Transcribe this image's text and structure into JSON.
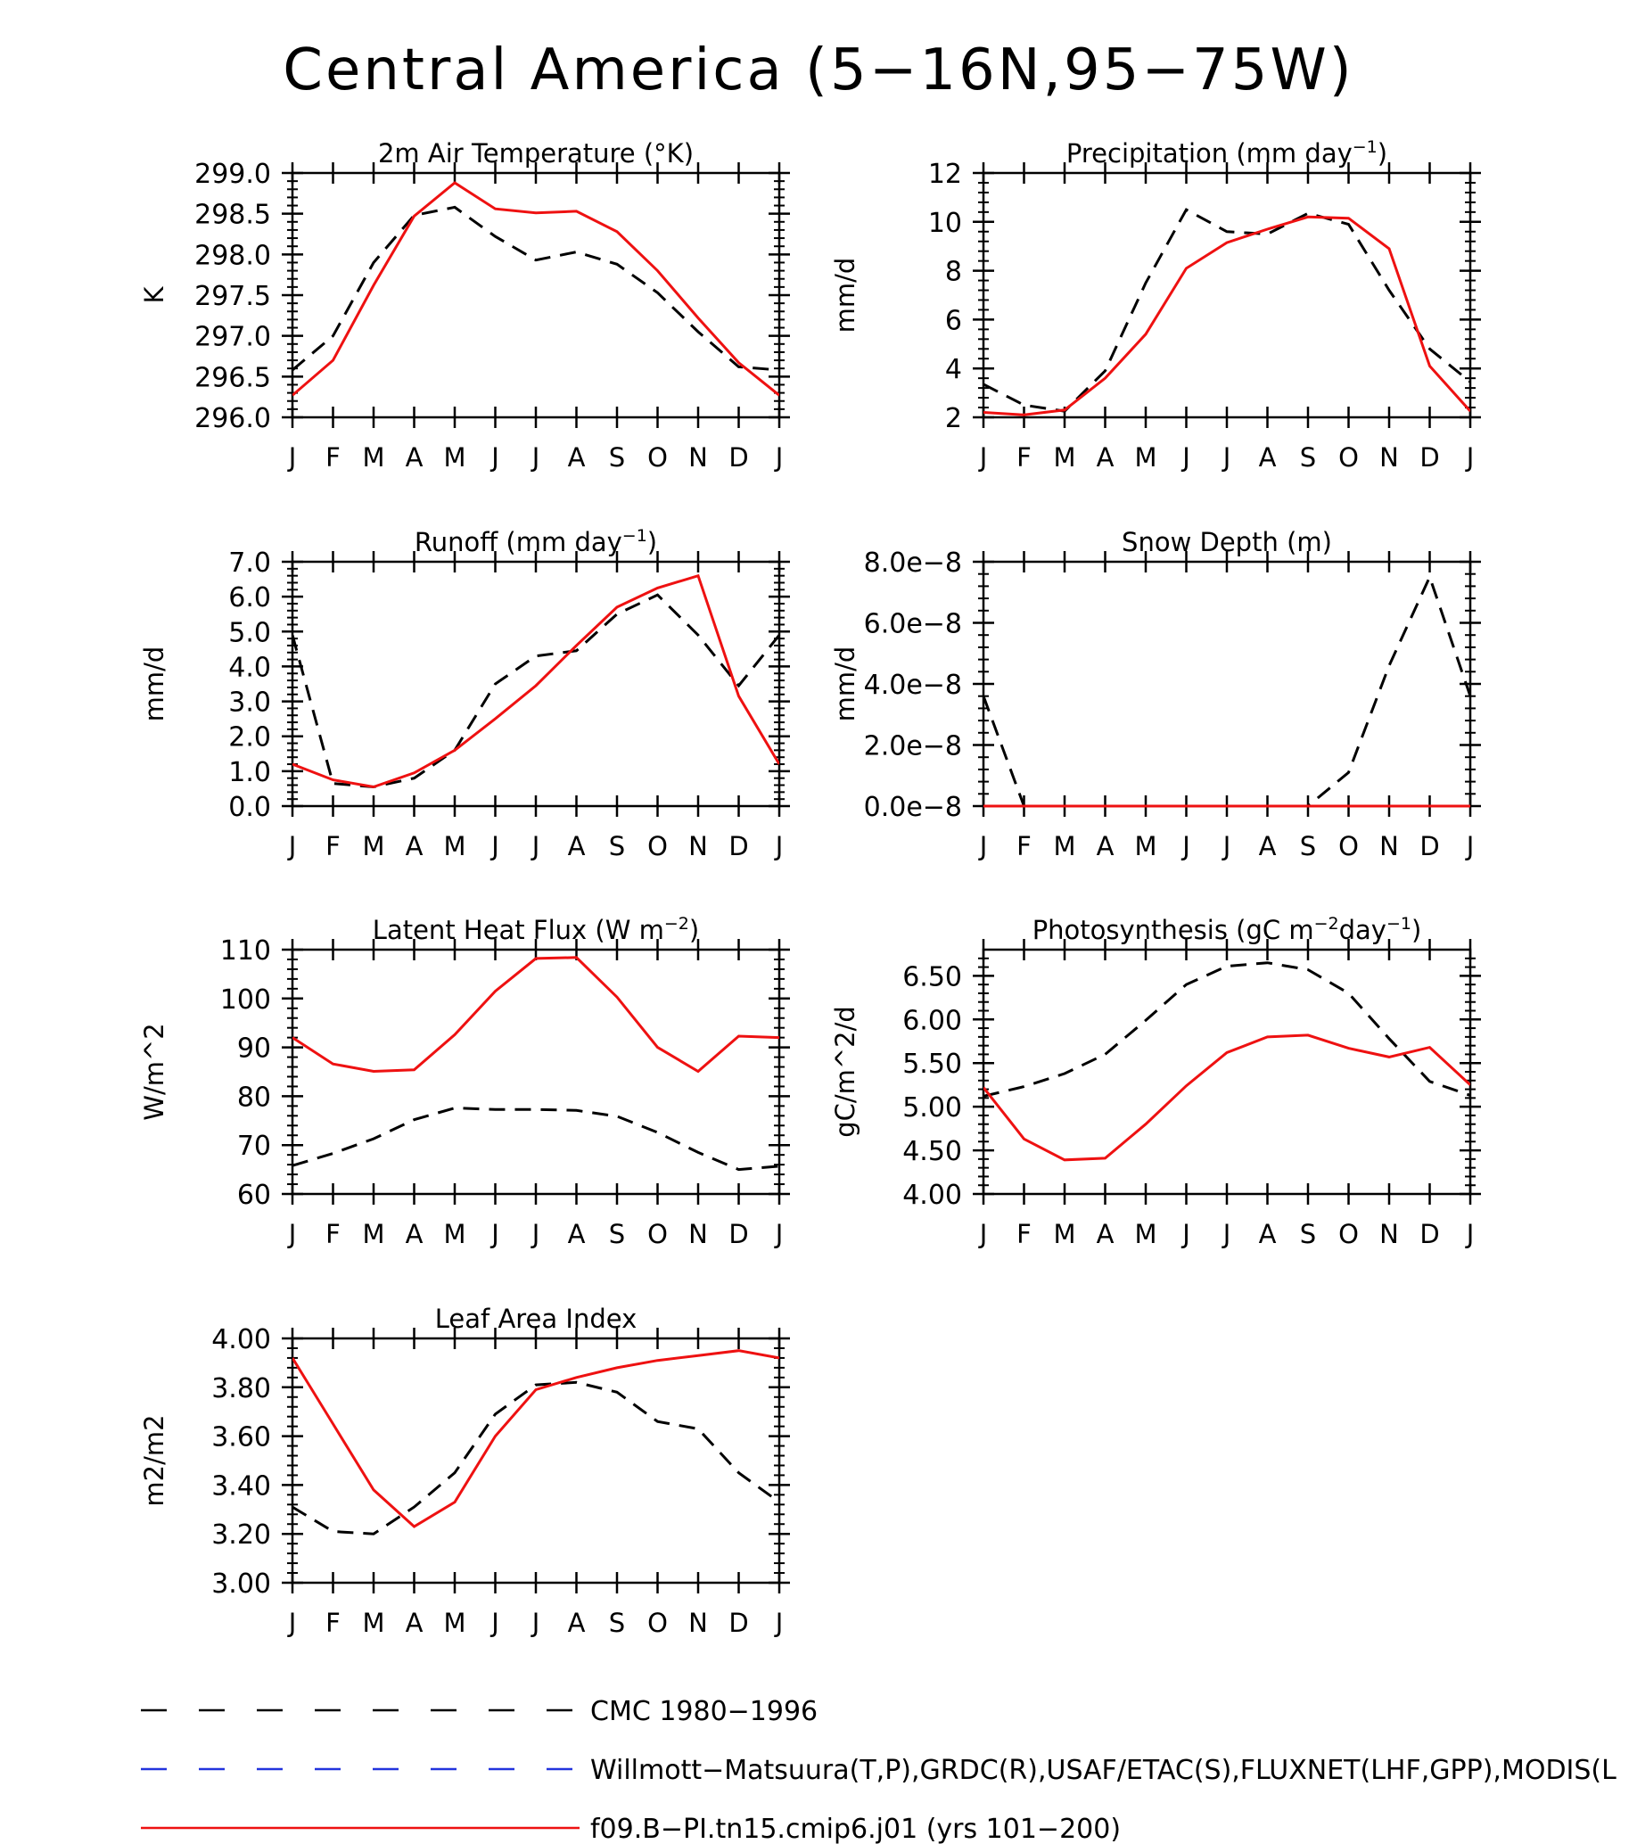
{
  "figure": {
    "title": "Central America (5−16N,95−75W)"
  },
  "months": [
    "J",
    "F",
    "M",
    "A",
    "M",
    "J",
    "J",
    "A",
    "S",
    "O",
    "N",
    "D",
    "J"
  ],
  "chart_data": [
    {
      "id": "temp",
      "type": "line",
      "title": "2m Air Temperature (°K)",
      "ylabel": "K",
      "ylim": [
        296.0,
        299.0
      ],
      "yticks": [
        296.0,
        296.5,
        297.0,
        297.5,
        298.0,
        298.5,
        299.0
      ],
      "yticklabels": [
        "296.0",
        "296.5",
        "297.0",
        "297.5",
        "298.0",
        "298.5",
        "299.0"
      ],
      "series": [
        {
          "style": "obs-cmc",
          "values": [
            296.58,
            297.0,
            297.9,
            298.48,
            298.58,
            298.22,
            297.93,
            298.03,
            297.88,
            297.53,
            297.05,
            296.62,
            296.58
          ]
        },
        {
          "style": "model",
          "values": [
            296.27,
            296.7,
            297.62,
            298.47,
            298.88,
            298.56,
            298.51,
            298.53,
            298.28,
            297.8,
            297.22,
            296.67,
            296.27
          ]
        }
      ]
    },
    {
      "id": "precip",
      "type": "line",
      "title": "Precipitation (mm day",
      "title_sup": "−1",
      "title_suffix": ")",
      "ylabel": "mm/d",
      "ylim": [
        2,
        12
      ],
      "yticks": [
        2,
        4,
        6,
        8,
        10,
        12
      ],
      "yticklabels": [
        "2",
        "4",
        "6",
        "8",
        "10",
        "12"
      ],
      "series": [
        {
          "style": "obs-cmc",
          "values": [
            3.35,
            2.5,
            2.25,
            3.9,
            7.5,
            10.5,
            9.6,
            9.5,
            10.35,
            9.9,
            7.2,
            4.8,
            3.45
          ]
        },
        {
          "style": "model",
          "values": [
            2.2,
            2.1,
            2.3,
            3.6,
            5.4,
            8.1,
            9.15,
            9.7,
            10.2,
            10.15,
            8.9,
            4.1,
            2.25
          ]
        }
      ]
    },
    {
      "id": "runoff",
      "type": "line",
      "title": "Runoff (mm day",
      "title_sup": "−1",
      "title_suffix": ")",
      "ylabel": "mm/d",
      "ylim": [
        0,
        7
      ],
      "yticks": [
        0,
        1,
        2,
        3,
        4,
        5,
        6,
        7
      ],
      "yticklabels": [
        "0.0",
        "1.0",
        "2.0",
        "3.0",
        "4.0",
        "5.0",
        "6.0",
        "7.0"
      ],
      "series": [
        {
          "style": "obs-cmc",
          "values": [
            4.9,
            0.65,
            0.55,
            0.8,
            1.6,
            3.5,
            4.3,
            4.45,
            5.5,
            6.05,
            4.9,
            3.45,
            4.9
          ]
        },
        {
          "style": "model",
          "values": [
            1.2,
            0.75,
            0.55,
            0.95,
            1.6,
            2.5,
            3.45,
            4.6,
            5.7,
            6.25,
            6.6,
            3.15,
            1.2
          ]
        }
      ]
    },
    {
      "id": "snow",
      "type": "line",
      "title": "Snow Depth (m)",
      "ylabel": "mm/d",
      "ylim": [
        0,
        8e-08
      ],
      "yticks": [
        0,
        2e-08,
        4e-08,
        6e-08,
        8e-08
      ],
      "yticklabels": [
        "0.0e−8",
        "2.0e−8",
        "4.0e−8",
        "6.0e−8",
        "8.0e−8"
      ],
      "series": [
        {
          "style": "obs-cmc",
          "values": [
            3.6e-08,
            0,
            0,
            0,
            0,
            0,
            0,
            0,
            0,
            1.1e-08,
            4.6e-08,
            7.5e-08,
            3.6e-08
          ]
        },
        {
          "style": "model",
          "values": [
            0,
            0,
            0,
            0,
            0,
            0,
            0,
            0,
            0,
            0,
            0,
            0,
            0
          ]
        }
      ]
    },
    {
      "id": "lhf",
      "type": "line",
      "title": "Latent Heat Flux (W m",
      "title_sup": "−2",
      "title_suffix": ")",
      "ylabel": "W/m^2",
      "ylim": [
        60,
        110
      ],
      "yticks": [
        60,
        70,
        80,
        90,
        100,
        110
      ],
      "yticklabels": [
        "60",
        "70",
        "80",
        "90",
        "100",
        "110"
      ],
      "series": [
        {
          "style": "obs-cmc",
          "values": [
            65.8,
            68.3,
            71.3,
            75.2,
            77.6,
            77.3,
            77.3,
            77.1,
            75.9,
            72.6,
            68.5,
            65.0,
            65.7
          ]
        },
        {
          "style": "model",
          "values": [
            92.0,
            86.6,
            85.1,
            85.4,
            92.6,
            101.5,
            108.2,
            108.4,
            100.3,
            90.0,
            85.1,
            92.3,
            92.0
          ]
        }
      ]
    },
    {
      "id": "gpp",
      "type": "line",
      "title": "Photosynthesis (gC m",
      "title_sup": "−2",
      "title_mid": "day",
      "title_sup2": "−1",
      "title_suffix": ")",
      "ylabel": "gC/m^2/d",
      "ylim": [
        4.0,
        6.8
      ],
      "yticks": [
        4.0,
        4.5,
        5.0,
        5.5,
        6.0,
        6.5
      ],
      "yticklabels": [
        "4.00",
        "4.50",
        "5.00",
        "5.50",
        "6.00",
        "6.50"
      ],
      "series": [
        {
          "style": "obs-cmc",
          "values": [
            5.12,
            5.23,
            5.38,
            5.6,
            5.99,
            6.4,
            6.61,
            6.65,
            6.57,
            6.3,
            5.78,
            5.29,
            5.13
          ]
        },
        {
          "style": "model",
          "values": [
            5.22,
            4.63,
            4.39,
            4.41,
            4.8,
            5.24,
            5.62,
            5.8,
            5.82,
            5.67,
            5.57,
            5.68,
            5.25
          ]
        }
      ]
    },
    {
      "id": "lai",
      "type": "line",
      "title": "Leaf Area Index",
      "ylabel": "m2/m2",
      "ylim": [
        3.0,
        4.0
      ],
      "yticks": [
        3.0,
        3.2,
        3.4,
        3.6,
        3.8,
        4.0
      ],
      "yticklabels": [
        "3.00",
        "3.20",
        "3.40",
        "3.60",
        "3.80",
        "4.00"
      ],
      "series": [
        {
          "style": "obs-cmc",
          "values": [
            3.31,
            3.21,
            3.2,
            3.31,
            3.45,
            3.69,
            3.81,
            3.82,
            3.78,
            3.66,
            3.63,
            3.45,
            3.33
          ]
        },
        {
          "style": "model",
          "values": [
            3.92,
            3.65,
            3.38,
            3.23,
            3.33,
            3.6,
            3.79,
            3.84,
            3.88,
            3.91,
            3.93,
            3.95,
            3.92
          ]
        }
      ]
    }
  ],
  "legend": [
    {
      "style": "obs-cmc",
      "label": "CMC 1980−1996",
      "color": "#000000",
      "dashed": true
    },
    {
      "style": "obs-ref",
      "label": "Willmott−Matsuura(T,P),GRDC(R),USAF/ETAC(S),FLUXNET(LHF,GPP),MODIS(L",
      "color": "#2233dd",
      "dashed": true
    },
    {
      "style": "model",
      "label": "f09.B−PI.tn15.cmip6.j01 (yrs 101−200)",
      "color": "#ee1111",
      "dashed": false
    }
  ],
  "colors": {
    "obs_cmc": "#000000",
    "obs_ref": "#2233dd",
    "model": "#ee1111",
    "axis": "#000000"
  }
}
